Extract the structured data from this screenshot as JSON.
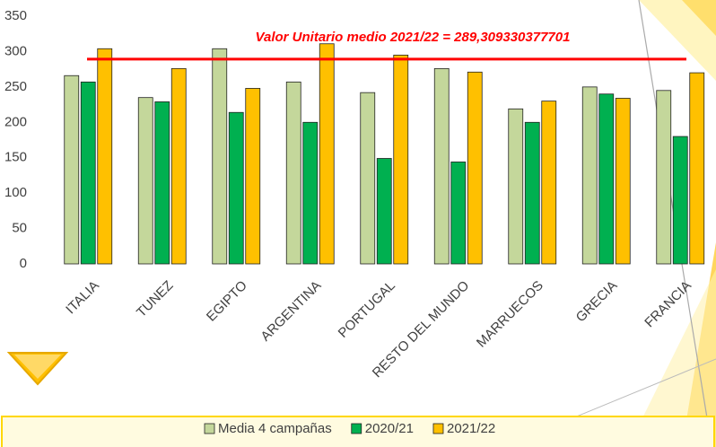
{
  "chart_data": {
    "type": "bar",
    "categories": [
      "ITALIA",
      "TUNEZ",
      "EGIPTO",
      "ARGENTINA",
      "PORTUGAL",
      "RESTO DEL MUNDO",
      "MARRUECOS",
      "GRECIA",
      "FRANCIA"
    ],
    "series": [
      {
        "name": "Media 4 campañas",
        "color": "#c4d79b",
        "values": [
          266,
          235,
          304,
          257,
          242,
          276,
          219,
          250,
          245
        ]
      },
      {
        "name": "2020/21",
        "color": "#00b050",
        "values": [
          257,
          229,
          214,
          200,
          149,
          144,
          200,
          240,
          180
        ]
      },
      {
        "name": "2021/22",
        "color": "#ffc000",
        "values": [
          304,
          276,
          248,
          311,
          295,
          271,
          230,
          234,
          270
        ]
      }
    ],
    "reference_line": {
      "value": 289.309330377701,
      "label": "Valor Unitario medio 2021/22 = 289,309330377701",
      "color": "#ff0000"
    },
    "ylim": [
      0,
      350
    ],
    "yticks": [
      0,
      50,
      100,
      150,
      200,
      250,
      300,
      350
    ],
    "grid": false,
    "legend": "bottom"
  }
}
